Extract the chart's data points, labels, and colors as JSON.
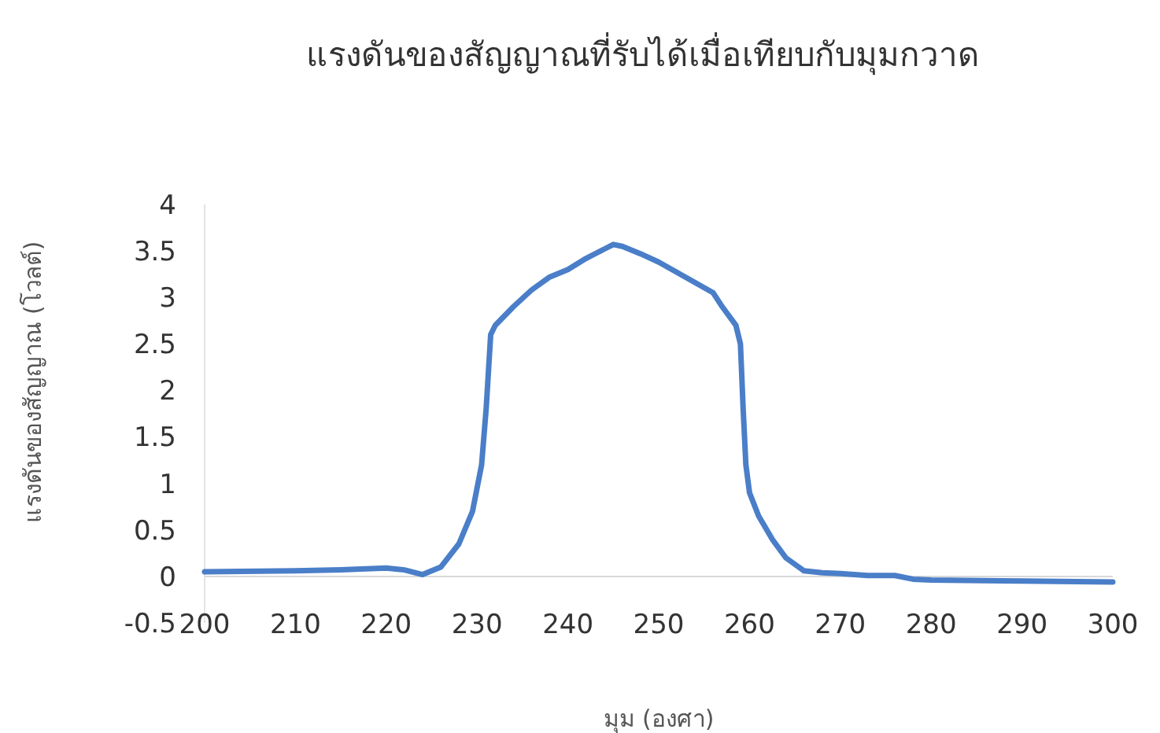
{
  "chart_data": {
    "type": "line",
    "title": "แรงดันของสัญญาณที่รับได้เมื่อเทียบกับมุมกวาด",
    "xlabel": "มุม (องศา)",
    "ylabel": "แรงดันของสัญญาณ (โวลต์)",
    "xlim": [
      200,
      300
    ],
    "xticks": [
      200,
      210,
      220,
      230,
      240,
      250,
      260,
      270,
      280,
      290,
      300
    ],
    "ylim": [
      -0.5,
      4
    ],
    "yticks": [
      -0.5,
      0,
      0.5,
      1,
      1.5,
      2,
      2.5,
      3,
      3.5,
      4
    ],
    "grid": false,
    "marker": "none",
    "line_style": "solid",
    "series": [
      {
        "color": "#4a7ec8",
        "x": [
          200,
          210,
          215,
          220,
          222,
          224,
          226,
          228,
          229.5,
          230.5,
          231,
          231.5,
          232,
          234,
          236,
          238,
          240,
          242,
          244,
          245,
          246,
          248,
          250,
          252,
          254,
          256,
          257,
          258.5,
          259,
          259.3,
          259.6,
          260,
          261,
          262.5,
          264,
          266,
          268,
          270,
          273,
          276,
          278,
          280,
          290,
          300
        ],
        "values": [
          0.05,
          0.06,
          0.07,
          0.09,
          0.07,
          0.02,
          0.1,
          0.35,
          0.7,
          1.2,
          1.8,
          2.6,
          2.7,
          2.9,
          3.08,
          3.22,
          3.3,
          3.42,
          3.52,
          3.57,
          3.55,
          3.47,
          3.38,
          3.27,
          3.16,
          3.05,
          2.9,
          2.7,
          2.5,
          1.8,
          1.2,
          0.9,
          0.65,
          0.4,
          0.2,
          0.06,
          0.04,
          0.03,
          0.01,
          0.01,
          -0.03,
          -0.04,
          -0.05,
          -0.06
        ]
      }
    ]
  }
}
